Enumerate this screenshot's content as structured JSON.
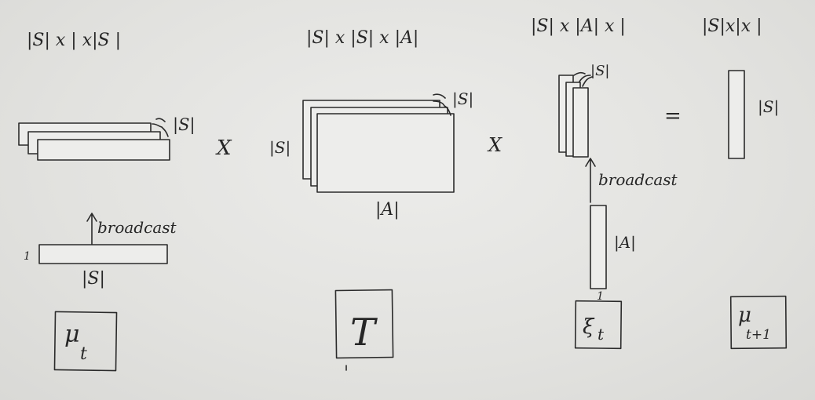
{
  "dims": {
    "mu_t": "|S| x | x|S |",
    "transition": "|S| x |S| x |A|",
    "xi_t": "|S| x |A| x |",
    "mu_next": "|S|x|x |"
  },
  "operators": {
    "times1": "X",
    "times2": "X",
    "equals": "="
  },
  "labels": {
    "s_depth_mu": "|S|",
    "broadcast_mu": "broadcast",
    "one_mu": "1",
    "s_len_mu": "|S|",
    "s_depth_T": "|S|",
    "s_side_T": "|S|",
    "a_len_T": "|A|",
    "s_depth_xi": "|S|",
    "broadcast_xi": "broadcast",
    "a_len_xi": "|A|",
    "one_xi": "1",
    "s_len_next": "|S|"
  },
  "symbols": {
    "mu_t_main": "μ",
    "mu_t_sub": "t",
    "T": "T",
    "xi_main": "ξ",
    "xi_sub": "t",
    "mu_next_main": "μ",
    "mu_next_sub": "t+1"
  }
}
